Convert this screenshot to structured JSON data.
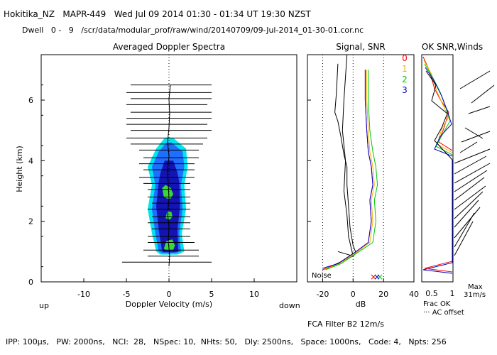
{
  "header": {
    "title": "Hokitika_NZ   MAPR-449   Wed Jul 09 2014 01:30 - 01:34 UT 19:30 NZST",
    "dwell": "Dwell   0 -   9   /scr/data/modular_prof/raw/wind/20140709/09-Jul-2014_01-30-01.cor.nc"
  },
  "footer": {
    "params": "IPP: 100μs,   PW: 2000ns,   NCI:  28,   NSpec: 10,  NHts: 50,   Dly: 2500ns,   Space: 1000ns,   Code: 4,   Npts: 256",
    "filter": "FCA Filter B2 12m/s"
  },
  "colors": {
    "snr_scale": [
      "#00e5ee",
      "#1e6eff",
      "#1414b4",
      "#6b0fc8",
      "#38d838",
      "#e6e600",
      "#f0b400",
      "#ff8c00",
      "#ff0000",
      "#640000",
      "#200000",
      "#5a0050"
    ],
    "series": {
      "0": "#ff0000",
      "1": "#f0b400",
      "2": "#00c800",
      "3": "#0000c8"
    }
  },
  "chart_data": [
    {
      "id": "doppler",
      "type": "heatmap",
      "title": "Averaged Doppler Spectra",
      "xlabel": "Doppler Velocity (m/s)",
      "ylabel": "Height (km)",
      "xlim": [
        -15,
        15
      ],
      "ylim": [
        0,
        7.5
      ],
      "xticks": [
        -10,
        -5,
        0,
        5,
        10
      ],
      "yticks": [
        0,
        2,
        4,
        6
      ],
      "x_left_label": "up",
      "x_right_label": "down",
      "spectra_width_bars": [
        {
          "h": 0.65,
          "l": -5.5,
          "r": 5.0
        },
        {
          "h": 0.85,
          "l": -2.5,
          "r": 3.5
        },
        {
          "h": 1.05,
          "l": -3.0,
          "r": 3.5
        },
        {
          "h": 1.3,
          "l": -2.5,
          "r": 3.0
        },
        {
          "h": 1.5,
          "l": -2.5,
          "r": 2.5
        },
        {
          "h": 1.75,
          "l": -2.0,
          "r": 2.5
        },
        {
          "h": 1.95,
          "l": -2.5,
          "r": 2.5
        },
        {
          "h": 2.15,
          "l": -2.0,
          "r": 2.5
        },
        {
          "h": 2.4,
          "l": -2.5,
          "r": 2.5
        },
        {
          "h": 2.6,
          "l": -2.0,
          "r": 2.5
        },
        {
          "h": 2.8,
          "l": -2.5,
          "r": 2.5
        },
        {
          "h": 3.05,
          "l": -2.5,
          "r": 2.5
        },
        {
          "h": 3.25,
          "l": -3.0,
          "r": 2.5
        },
        {
          "h": 3.45,
          "l": -3.5,
          "r": 3.0
        },
        {
          "h": 3.7,
          "l": -3.0,
          "r": 3.0
        },
        {
          "h": 3.9,
          "l": -3.5,
          "r": 3.0
        },
        {
          "h": 4.1,
          "l": -3.0,
          "r": 3.5
        },
        {
          "h": 4.35,
          "l": -3.5,
          "r": 3.5
        },
        {
          "h": 4.55,
          "l": -4.5,
          "r": 4.0
        },
        {
          "h": 4.75,
          "l": -5.0,
          "r": 4.5
        },
        {
          "h": 5.0,
          "l": -4.5,
          "r": 5.0
        },
        {
          "h": 5.2,
          "l": -5.0,
          "r": 4.5
        },
        {
          "h": 5.4,
          "l": -5.0,
          "r": 5.0
        },
        {
          "h": 5.6,
          "l": -4.5,
          "r": 5.0
        },
        {
          "h": 5.85,
          "l": -5.0,
          "r": 4.5
        },
        {
          "h": 6.05,
          "l": -4.5,
          "r": 5.0
        },
        {
          "h": 6.25,
          "l": -5.0,
          "r": 5.0
        },
        {
          "h": 6.5,
          "l": -4.5,
          "r": 5.0
        }
      ],
      "snr_contours": [
        {
          "level": -2,
          "pts": [
            [
              -1.5,
              1.0
            ],
            [
              -2.0,
              1.6
            ],
            [
              -2.5,
              2.4
            ],
            [
              -2.0,
              3.2
            ],
            [
              -2.5,
              3.8
            ],
            [
              -1.5,
              4.4
            ],
            [
              -0.5,
              4.75
            ],
            [
              0.5,
              4.75
            ],
            [
              2.0,
              4.4
            ],
            [
              2.2,
              3.8
            ],
            [
              1.8,
              3.2
            ],
            [
              2.0,
              2.4
            ],
            [
              1.5,
              1.6
            ],
            [
              1.8,
              1.0
            ],
            [
              1.0,
              0.9
            ],
            [
              -1.0,
              0.9
            ]
          ]
        },
        {
          "level": -1,
          "pts": [
            [
              -1.2,
              1.0
            ],
            [
              -1.6,
              1.6
            ],
            [
              -2.0,
              2.4
            ],
            [
              -1.6,
              3.2
            ],
            [
              -2.0,
              3.8
            ],
            [
              -1.2,
              4.3
            ],
            [
              -0.3,
              4.6
            ],
            [
              0.3,
              4.6
            ],
            [
              1.6,
              4.3
            ],
            [
              1.8,
              3.8
            ],
            [
              1.4,
              3.2
            ],
            [
              1.6,
              2.4
            ],
            [
              1.2,
              1.6
            ],
            [
              1.4,
              1.0
            ],
            [
              0.8,
              0.95
            ],
            [
              -0.8,
              0.95
            ]
          ]
        },
        {
          "level": 0,
          "pts": [
            [
              -0.8,
              1.0
            ],
            [
              -1.2,
              1.7
            ],
            [
              -1.5,
              2.5
            ],
            [
              -1.2,
              3.3
            ],
            [
              -1.0,
              3.6
            ],
            [
              -0.5,
              4.0
            ],
            [
              0.5,
              4.0
            ],
            [
              1.0,
              3.6
            ],
            [
              1.2,
              3.3
            ],
            [
              1.3,
              2.5
            ],
            [
              1.0,
              1.7
            ],
            [
              1.1,
              1.0
            ],
            [
              0.6,
              0.98
            ],
            [
              -0.6,
              0.98
            ]
          ]
        },
        {
          "level": 1,
          "pts": [
            [
              -0.6,
              1.1
            ],
            [
              -0.3,
              1.35
            ],
            [
              0.4,
              1.4
            ],
            [
              0.7,
              1.2
            ],
            [
              0.5,
              1.05
            ],
            [
              -0.4,
              1.05
            ]
          ]
        },
        {
          "level": 1,
          "pts": [
            [
              -0.4,
              2.1
            ],
            [
              -0.2,
              2.35
            ],
            [
              0.3,
              2.3
            ],
            [
              0.4,
              2.15
            ],
            [
              0.1,
              2.05
            ]
          ]
        },
        {
          "level": 1,
          "pts": [
            [
              -0.6,
              2.8
            ],
            [
              -0.8,
              3.1
            ],
            [
              -0.4,
              3.2
            ],
            [
              0.2,
              3.1
            ],
            [
              0.5,
              2.9
            ],
            [
              0.2,
              2.75
            ],
            [
              -0.2,
              2.75
            ]
          ]
        }
      ]
    },
    {
      "id": "signal",
      "type": "line",
      "title": "Signal, SNR",
      "xlabel": "dB",
      "xlim": [
        -30,
        40
      ],
      "xticks": [
        -20,
        0,
        20,
        40
      ],
      "noise_label": "Noise",
      "series": [
        {
          "name": "signal",
          "color": "#000000",
          "points": [
            [
              -20,
              0.4
            ],
            [
              -15,
              0.5
            ],
            [
              0,
              0.85
            ],
            [
              2,
              0.95
            ],
            [
              0,
              1.2
            ],
            [
              -2,
              1.8
            ],
            [
              -3,
              2.5
            ],
            [
              -4,
              3.2
            ],
            [
              -4,
              3.8
            ],
            [
              -6,
              4.2
            ],
            [
              -8,
              4.8
            ],
            [
              -10,
              5.3
            ],
            [
              -12,
              5.6
            ],
            [
              -11,
              6.2
            ],
            [
              -10,
              7.2
            ]
          ]
        },
        {
          "name": "noise",
          "color": "#000000",
          "points": [
            [
              -10,
              1.0
            ],
            [
              0,
              0.85
            ],
            [
              -3,
              1.5
            ],
            [
              -4,
              2.2
            ],
            [
              -6,
              3.0
            ],
            [
              -5,
              4.0
            ],
            [
              -7,
              5.0
            ],
            [
              -6,
              6.0
            ],
            [
              -4,
              7.5
            ]
          ]
        },
        {
          "name": "0",
          "color": "#ff0000",
          "points": [
            [
              -20,
              0.4
            ],
            [
              -10,
              0.6
            ],
            [
              2,
              1.0
            ],
            [
              10,
              1.3
            ],
            [
              12,
              2.0
            ],
            [
              11,
              2.7
            ],
            [
              13,
              3.2
            ],
            [
              12,
              3.8
            ],
            [
              10,
              4.3
            ],
            [
              9,
              5.0
            ],
            [
              8,
              6.0
            ],
            [
              8,
              7.0
            ]
          ]
        },
        {
          "name": "1",
          "color": "#f0b400",
          "points": [
            [
              -19,
              0.4
            ],
            [
              -9,
              0.6
            ],
            [
              3,
              1.0
            ],
            [
              11,
              1.3
            ],
            [
              13,
              2.0
            ],
            [
              12,
              2.7
            ],
            [
              14,
              3.2
            ],
            [
              13,
              3.8
            ],
            [
              11,
              4.3
            ],
            [
              10,
              5.0
            ],
            [
              9,
              6.0
            ],
            [
              9,
              7.0
            ]
          ]
        },
        {
          "name": "2",
          "color": "#00c800",
          "points": [
            [
              -18,
              0.4
            ],
            [
              -8,
              0.6
            ],
            [
              4,
              1.0
            ],
            [
              13,
              1.3
            ],
            [
              15,
              2.0
            ],
            [
              14,
              2.7
            ],
            [
              16,
              3.2
            ],
            [
              15,
              3.8
            ],
            [
              13,
              4.3
            ],
            [
              11,
              5.0
            ],
            [
              10,
              6.0
            ],
            [
              10,
              7.0
            ]
          ]
        },
        {
          "name": "3",
          "color": "#0000c8",
          "points": [
            [
              -20,
              0.45
            ],
            [
              -10,
              0.6
            ],
            [
              2,
              1.0
            ],
            [
              10,
              1.3
            ],
            [
              12,
              2.0
            ],
            [
              11,
              2.7
            ],
            [
              13,
              3.2
            ],
            [
              12,
              3.8
            ],
            [
              10,
              4.3
            ],
            [
              9,
              5.0
            ],
            [
              8,
              6.0
            ],
            [
              8,
              7.0
            ]
          ]
        }
      ]
    },
    {
      "id": "winds",
      "type": "line",
      "title": "OK SNR,Winds",
      "legend": [
        "0",
        "1",
        "2",
        "3"
      ],
      "xticks": [
        "0.5",
        "1"
      ],
      "frac_label": "Frac OK",
      "ac_label": "··· AC offset",
      "max_label": "Max",
      "max_value": "31m/s"
    }
  ]
}
